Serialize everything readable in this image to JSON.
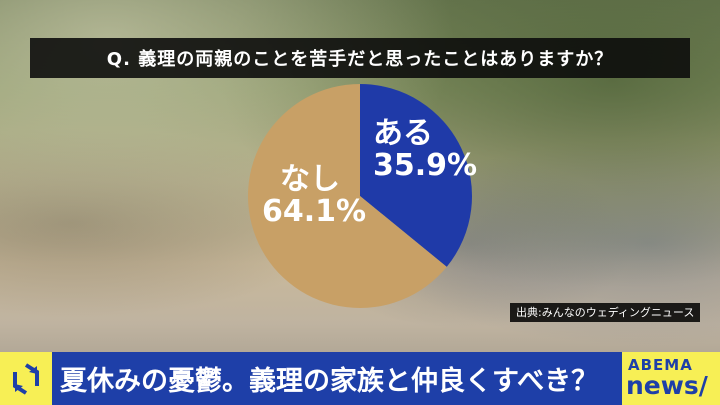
{
  "question": "Q. 義理の両親のことを苦手だと思ったことはありますか？",
  "chart_data": {
    "type": "pie",
    "title": "Q. 義理の両親のことを苦手だと思ったことはありますか？",
    "slices": [
      {
        "label": "ある",
        "value": 35.9,
        "value_text": "35.9%",
        "color": "#1f3aa8"
      },
      {
        "label": "なし",
        "value": 64.1,
        "value_text": "64.1%",
        "color": "#c8a066"
      }
    ]
  },
  "source": "出典:みんなのウェディングニュース",
  "headline": "夏休みの憂鬱。義理の家族と仲良くすべき？",
  "logo": {
    "line1": "ABEMA",
    "line2": "news/"
  },
  "colors": {
    "bar_blue": "#1e3fa8",
    "bar_yellow": "#f7ef55"
  }
}
